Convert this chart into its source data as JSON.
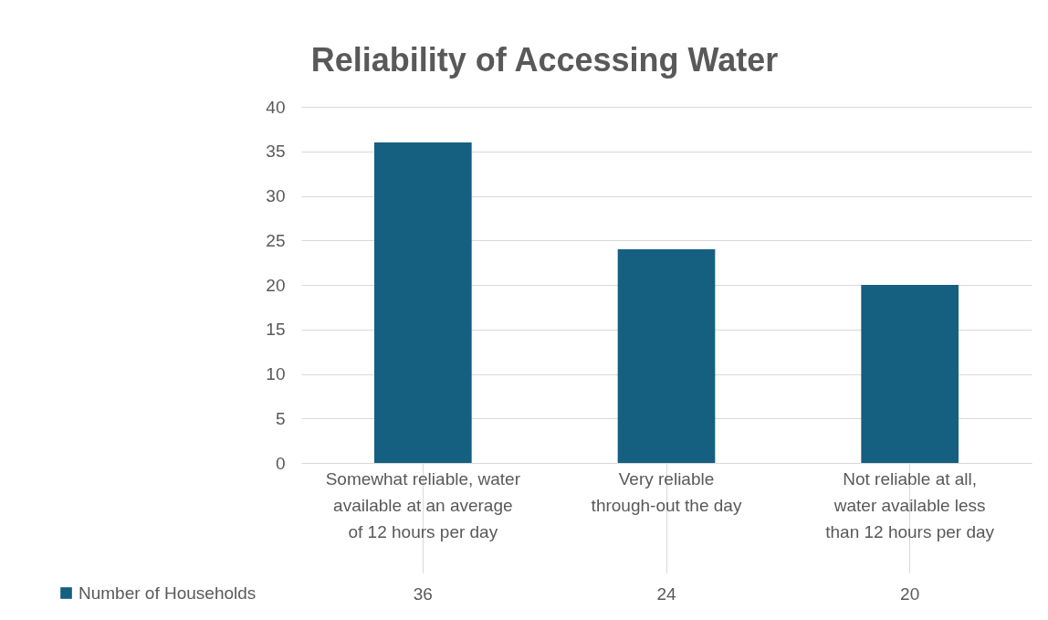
{
  "chart_data": {
    "type": "bar",
    "title": "Reliability of Accessing Water",
    "categories": [
      "Somewhat reliable, water available at an average of 12 hours per day",
      "Very reliable through-out the day",
      "Not reliable at all, water available less than 12 hours per day"
    ],
    "series": [
      {
        "name": "Number of Households",
        "color": "#155f80",
        "values": [
          36,
          24,
          20
        ]
      }
    ],
    "ylim": [
      0,
      40
    ],
    "yticks": [
      0,
      5,
      10,
      15,
      20,
      25,
      30,
      35,
      40
    ],
    "grid": "y",
    "legend": "bottom left",
    "data_labels": true
  }
}
